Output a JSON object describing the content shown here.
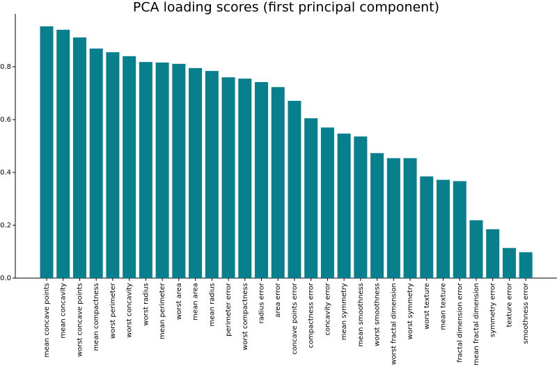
{
  "chart_data": {
    "type": "bar",
    "title": "PCA loading scores (first principal component)",
    "categories": [
      "mean concave points",
      "mean concavity",
      "worst concave points",
      "mean compactness",
      "worst perimeter",
      "worst concavity",
      "worst radius",
      "mean perimeter",
      "worst area",
      "mean area",
      "mean radius",
      "perimeter error",
      "worst compactness",
      "radius error",
      "area error",
      "concave points error",
      "compactness error",
      "concavity error",
      "mean symmetry",
      "mean smoothness",
      "worst smoothness",
      "worst fractal dimension",
      "worst symmetry",
      "worst texture",
      "mean texture",
      "fractal dimension error",
      "mean fractal dimension",
      "symmetry error",
      "texture error",
      "smoothness error"
    ],
    "values": [
      0.953,
      0.94,
      0.911,
      0.869,
      0.855,
      0.84,
      0.818,
      0.816,
      0.811,
      0.795,
      0.784,
      0.76,
      0.755,
      0.742,
      0.723,
      0.671,
      0.605,
      0.57,
      0.547,
      0.536,
      0.473,
      0.454,
      0.454,
      0.385,
      0.372,
      0.367,
      0.219,
      0.185,
      0.114,
      0.098
    ],
    "color": "#087f8c",
    "ylim": [
      0,
      1.0
    ],
    "yticks": [
      {
        "value": 0,
        "label": "0.0"
      },
      0.2,
      0.4,
      0.6,
      0.8
    ]
  }
}
